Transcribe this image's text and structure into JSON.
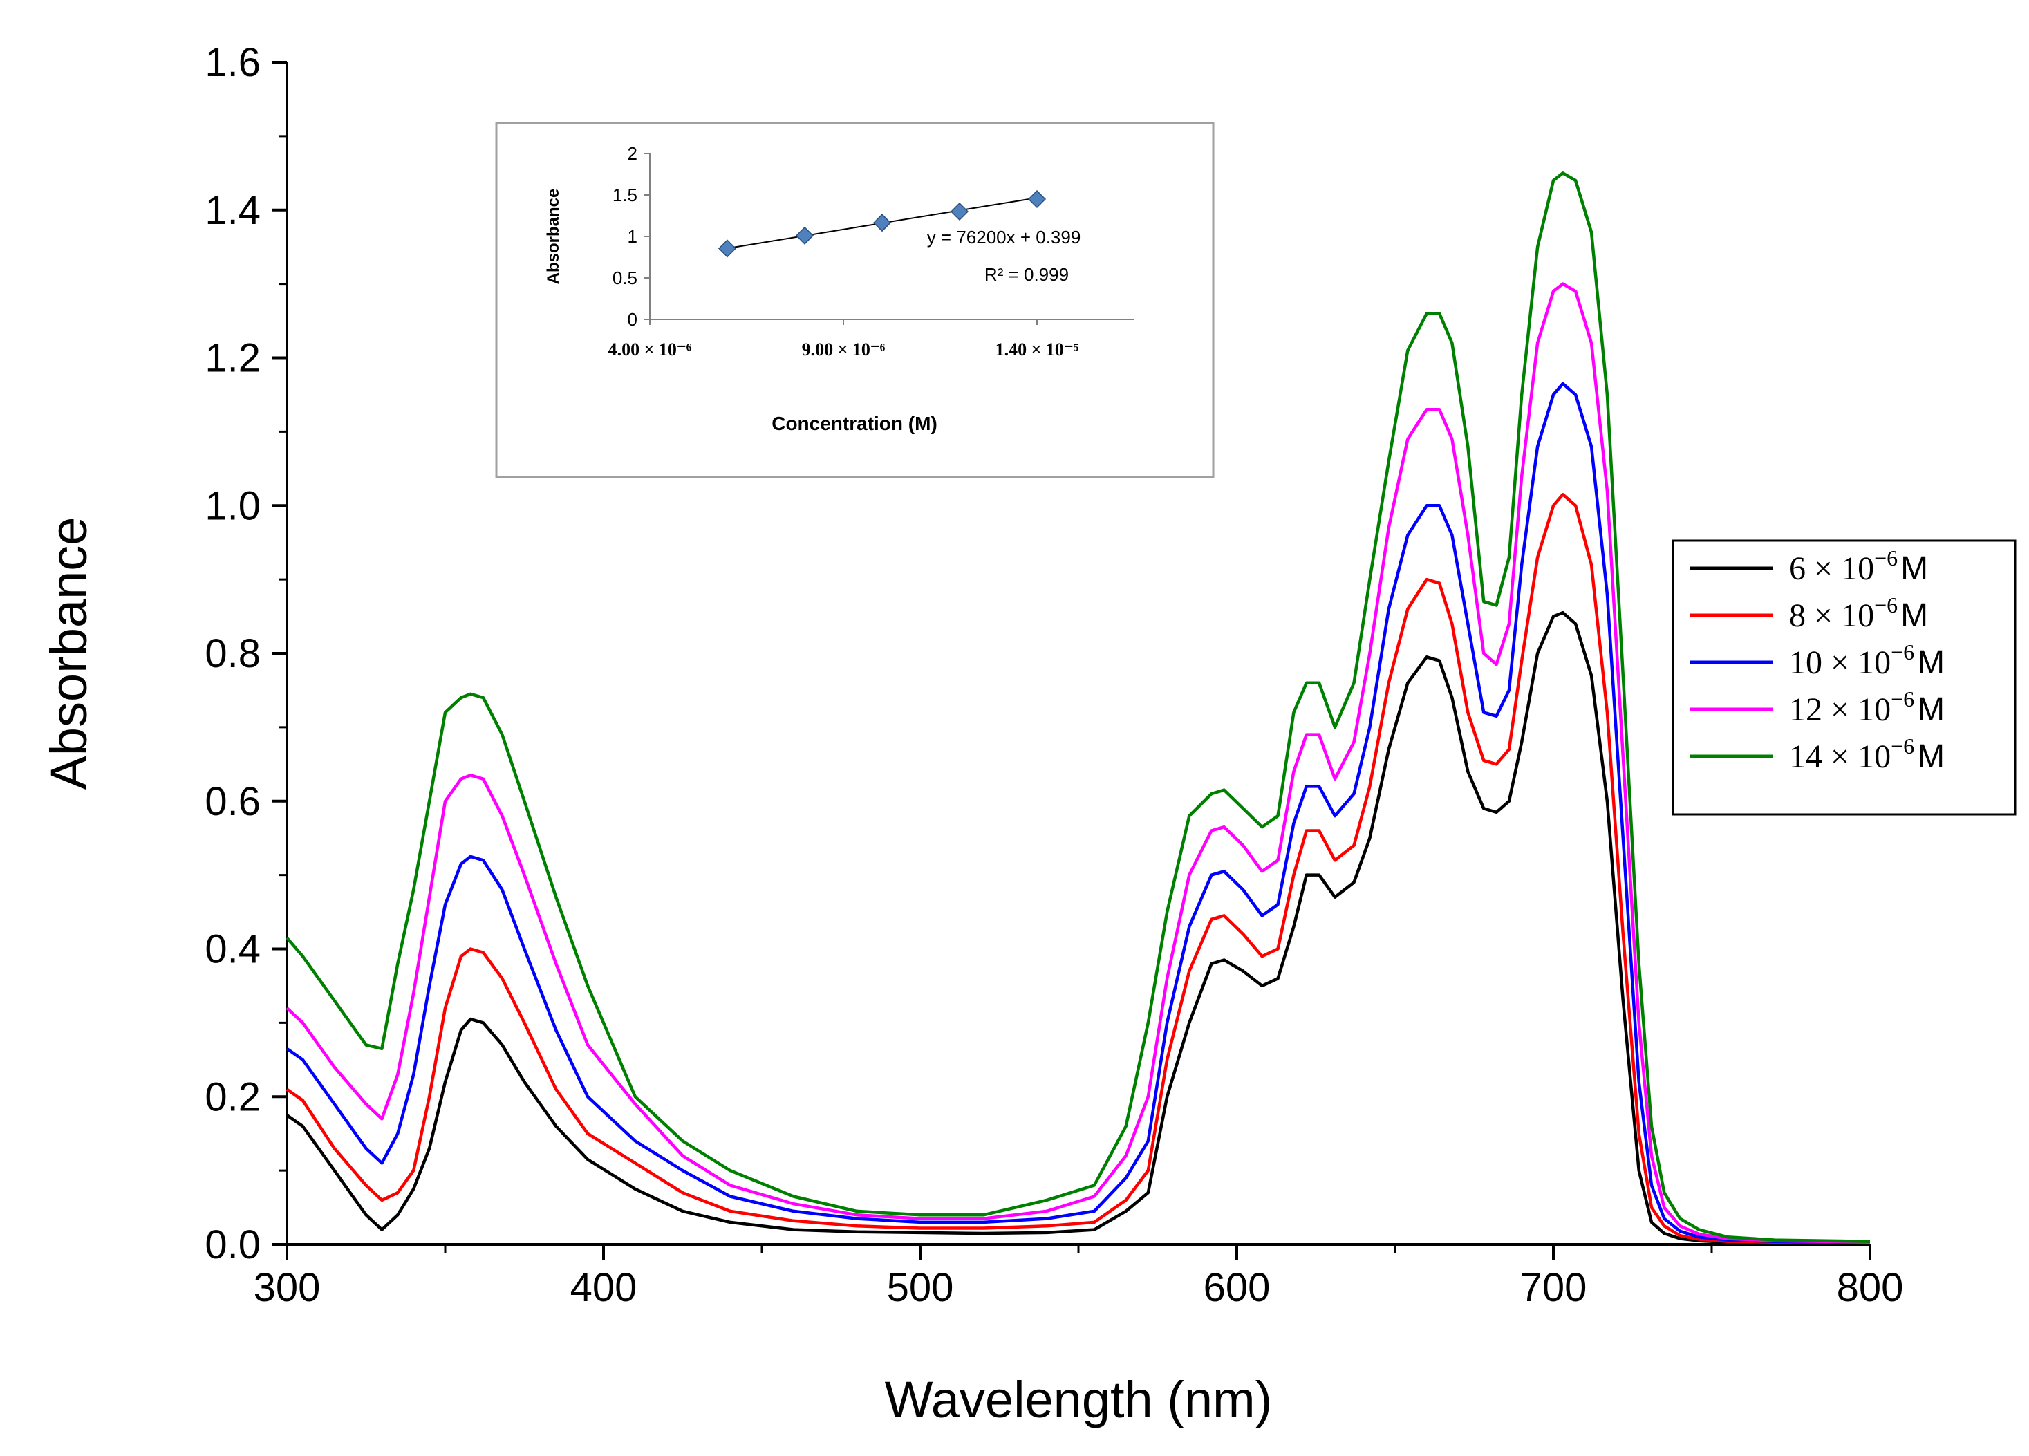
{
  "chart_data": [
    {
      "type": "line",
      "xlabel": "Wavelength (nm)",
      "ylabel": "Absorbance",
      "xlim": [
        300,
        800
      ],
      "ylim": [
        0.0,
        1.6
      ],
      "xticks": [
        300,
        400,
        500,
        600,
        700,
        800
      ],
      "xtick_labels": [
        "300",
        "400",
        "500",
        "600",
        "700",
        "800"
      ],
      "yticks": [
        0.0,
        0.2,
        0.4,
        0.6,
        0.8,
        1.0,
        1.2,
        1.4,
        1.6
      ],
      "ytick_labels": [
        "0.0",
        "0.2",
        "0.4",
        "0.6",
        "0.8",
        "1.0",
        "1.2",
        "1.4",
        "1.6"
      ],
      "legend_position": "right",
      "x": [
        300,
        305,
        315,
        325,
        330,
        335,
        340,
        345,
        350,
        355,
        358,
        362,
        368,
        375,
        385,
        395,
        410,
        425,
        440,
        460,
        480,
        500,
        520,
        540,
        555,
        565,
        572,
        578,
        585,
        592,
        596,
        602,
        608,
        613,
        618,
        622,
        626,
        631,
        637,
        642,
        648,
        654,
        660,
        664,
        668,
        673,
        678,
        682,
        686,
        690,
        695,
        700,
        703,
        707,
        712,
        717,
        722,
        727,
        731,
        735,
        740,
        746,
        755,
        770,
        800
      ],
      "series": [
        {
          "name": "6 × 10⁻⁶ M",
          "legend_main": "6 × 10",
          "legend_exp": "−6",
          "legend_unit": "M",
          "color": "#000000",
          "values": [
            0.175,
            0.16,
            0.1,
            0.04,
            0.02,
            0.04,
            0.075,
            0.13,
            0.22,
            0.29,
            0.305,
            0.3,
            0.27,
            0.22,
            0.16,
            0.115,
            0.075,
            0.045,
            0.03,
            0.02,
            0.017,
            0.016,
            0.015,
            0.016,
            0.02,
            0.045,
            0.07,
            0.2,
            0.3,
            0.38,
            0.385,
            0.37,
            0.35,
            0.36,
            0.43,
            0.5,
            0.5,
            0.47,
            0.49,
            0.55,
            0.67,
            0.76,
            0.795,
            0.79,
            0.74,
            0.64,
            0.59,
            0.585,
            0.6,
            0.68,
            0.8,
            0.85,
            0.855,
            0.84,
            0.77,
            0.6,
            0.33,
            0.1,
            0.03,
            0.015,
            0.008,
            0.005,
            0.003,
            0.002,
            0.001
          ]
        },
        {
          "name": "8 × 10⁻⁶ M",
          "legend_main": "8 × 10",
          "legend_exp": "−6",
          "legend_unit": "M",
          "color": "#ff0000",
          "values": [
            0.21,
            0.195,
            0.13,
            0.08,
            0.06,
            0.07,
            0.1,
            0.2,
            0.32,
            0.39,
            0.4,
            0.395,
            0.36,
            0.3,
            0.21,
            0.15,
            0.11,
            0.07,
            0.045,
            0.032,
            0.025,
            0.022,
            0.022,
            0.025,
            0.03,
            0.06,
            0.1,
            0.25,
            0.37,
            0.44,
            0.445,
            0.42,
            0.39,
            0.4,
            0.5,
            0.56,
            0.56,
            0.52,
            0.54,
            0.62,
            0.76,
            0.86,
            0.9,
            0.895,
            0.84,
            0.72,
            0.655,
            0.65,
            0.67,
            0.79,
            0.93,
            1.0,
            1.015,
            1.0,
            0.92,
            0.72,
            0.42,
            0.15,
            0.05,
            0.025,
            0.012,
            0.007,
            0.004,
            0.003,
            0.002
          ]
        },
        {
          "name": "10 × 10⁻⁶ M",
          "legend_main": "10 × 10",
          "legend_exp": "−6",
          "legend_unit": "M",
          "color": "#0000ff",
          "values": [
            0.265,
            0.25,
            0.19,
            0.13,
            0.11,
            0.15,
            0.23,
            0.35,
            0.46,
            0.515,
            0.525,
            0.52,
            0.48,
            0.4,
            0.29,
            0.2,
            0.14,
            0.1,
            0.065,
            0.045,
            0.035,
            0.03,
            0.03,
            0.035,
            0.045,
            0.09,
            0.14,
            0.3,
            0.43,
            0.5,
            0.505,
            0.48,
            0.445,
            0.46,
            0.57,
            0.62,
            0.62,
            0.58,
            0.61,
            0.7,
            0.86,
            0.96,
            1.0,
            1.0,
            0.96,
            0.84,
            0.72,
            0.715,
            0.75,
            0.92,
            1.08,
            1.15,
            1.165,
            1.15,
            1.08,
            0.88,
            0.55,
            0.22,
            0.08,
            0.035,
            0.018,
            0.01,
            0.006,
            0.004,
            0.002
          ]
        },
        {
          "name": "12 × 10⁻⁶ M",
          "legend_main": "12 × 10",
          "legend_exp": "−6",
          "legend_unit": "M",
          "color": "#ff00ff",
          "values": [
            0.32,
            0.3,
            0.24,
            0.19,
            0.17,
            0.23,
            0.34,
            0.47,
            0.6,
            0.63,
            0.635,
            0.63,
            0.58,
            0.5,
            0.38,
            0.27,
            0.19,
            0.12,
            0.08,
            0.055,
            0.04,
            0.035,
            0.035,
            0.045,
            0.065,
            0.12,
            0.2,
            0.36,
            0.5,
            0.56,
            0.565,
            0.54,
            0.505,
            0.52,
            0.64,
            0.69,
            0.69,
            0.63,
            0.68,
            0.8,
            0.97,
            1.09,
            1.13,
            1.13,
            1.09,
            0.96,
            0.8,
            0.785,
            0.84,
            1.04,
            1.22,
            1.29,
            1.3,
            1.29,
            1.22,
            1.02,
            0.66,
            0.3,
            0.12,
            0.05,
            0.025,
            0.014,
            0.008,
            0.005,
            0.003
          ]
        },
        {
          "name": "14 × 10⁻⁶ M",
          "legend_main": "14 × 10",
          "legend_exp": "−6",
          "legend_unit": "M",
          "color": "#008000",
          "values": [
            0.415,
            0.39,
            0.33,
            0.27,
            0.265,
            0.38,
            0.48,
            0.6,
            0.72,
            0.74,
            0.745,
            0.74,
            0.69,
            0.6,
            0.47,
            0.35,
            0.2,
            0.14,
            0.1,
            0.065,
            0.045,
            0.04,
            0.04,
            0.06,
            0.08,
            0.16,
            0.3,
            0.45,
            0.58,
            0.61,
            0.615,
            0.59,
            0.565,
            0.58,
            0.72,
            0.76,
            0.76,
            0.7,
            0.76,
            0.9,
            1.06,
            1.21,
            1.26,
            1.26,
            1.22,
            1.08,
            0.87,
            0.865,
            0.93,
            1.15,
            1.35,
            1.44,
            1.45,
            1.44,
            1.37,
            1.15,
            0.77,
            0.38,
            0.16,
            0.07,
            0.035,
            0.02,
            0.01,
            0.006,
            0.004
          ]
        }
      ]
    },
    {
      "type": "scatter",
      "title": "",
      "xlabel": "Concentration (M)",
      "ylabel": "Absorbance",
      "xlim": [
        4e-06,
        1.65e-05
      ],
      "ylim": [
        0,
        2
      ],
      "xticks": [
        4e-06,
        9e-06,
        1.4e-05
      ],
      "xtick_labels": [
        "4.00 × 10⁻⁶",
        "9.00 × 10⁻⁶",
        "1.40 × 10⁻⁵"
      ],
      "yticks": [
        0,
        0.5,
        1,
        1.5,
        2
      ],
      "ytick_labels": [
        "0",
        "0.5",
        "1",
        "1.5",
        "2"
      ],
      "x": [
        6e-06,
        8e-06,
        1e-05,
        1.2e-05,
        1.4e-05
      ],
      "values": [
        0.855,
        1.01,
        1.165,
        1.3,
        1.45
      ],
      "marker_color": "#4f81bd",
      "trendline": {
        "slope": 76200,
        "intercept": 0.399
      },
      "equation": "y = 76200x + 0.399",
      "r_squared": "R² = 0.999"
    }
  ]
}
